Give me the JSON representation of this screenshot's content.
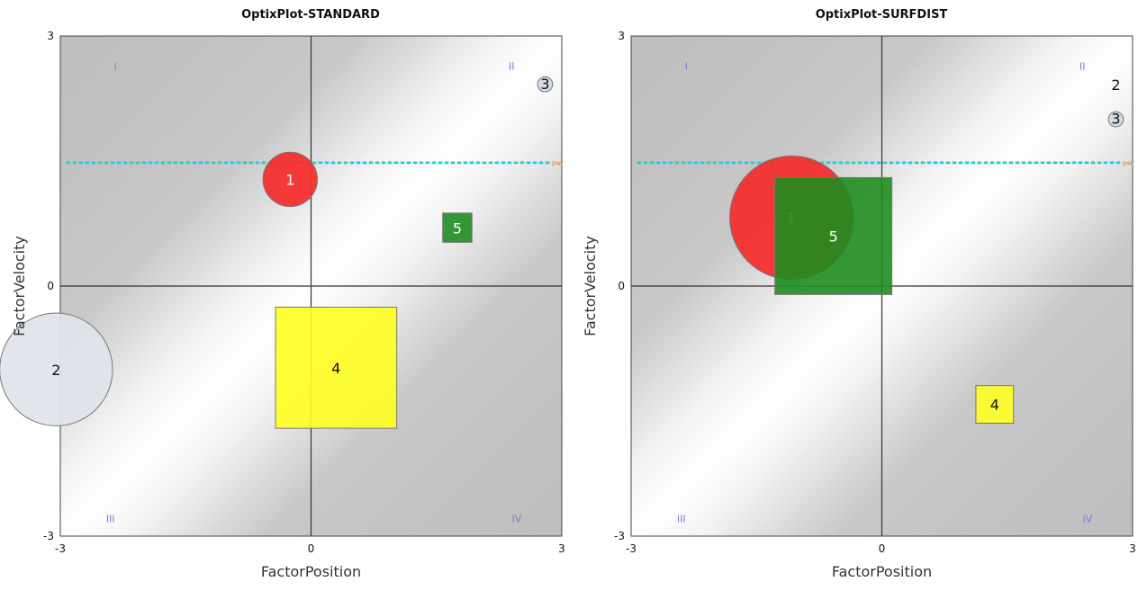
{
  "chart_data": [
    {
      "type": "scatter",
      "title": "OptixPlot-STANDARD",
      "xlabel": "FactorPosition",
      "ylabel": "FactorVelocity",
      "xlim": [
        -3,
        3
      ],
      "ylim": [
        -3,
        3
      ],
      "x_ticks": [
        "-3",
        "0",
        "3"
      ],
      "y_ticks": [
        "-3",
        "0",
        "3"
      ],
      "quadrants": [
        "I",
        "II",
        "III",
        "IV"
      ],
      "reference_line": {
        "y": 1.48,
        "label": "pwr"
      },
      "markers": [
        {
          "label": "1",
          "shape": "circle",
          "x": -0.25,
          "y": 1.28,
          "size": 0.65,
          "color": "#f42a2a"
        },
        {
          "label": "2",
          "shape": "circle",
          "x": -3.05,
          "y": -1.0,
          "size": 1.35,
          "color": "#dfe4ea"
        },
        {
          "label": "3",
          "shape": "circle",
          "x": 2.8,
          "y": 2.42,
          "size": 0.18,
          "color": "#cfd8e6"
        },
        {
          "label": "4",
          "shape": "square",
          "x": 0.3,
          "y": -0.98,
          "size": 1.45,
          "color": "#ffff22"
        },
        {
          "label": "5",
          "shape": "square",
          "x": 1.75,
          "y": 0.7,
          "size": 0.35,
          "color": "#1f8c1f"
        }
      ]
    },
    {
      "type": "scatter",
      "title": "OptixPlot-SURFDIST",
      "xlabel": "FactorPosition",
      "ylabel": "FactorVelocity",
      "xlim": [
        -3,
        3
      ],
      "ylim": [
        -3,
        3
      ],
      "x_ticks": [
        "-3",
        "0",
        "3"
      ],
      "y_ticks": [
        "-3",
        "0",
        "3"
      ],
      "quadrants": [
        "I",
        "II",
        "III",
        "IV"
      ],
      "reference_line": {
        "y": 1.48,
        "label": "pwr"
      },
      "markers": [
        {
          "label": "1",
          "shape": "circle",
          "x": -1.08,
          "y": 0.82,
          "size": 1.48,
          "color": "#f42a2a"
        },
        {
          "label": "2",
          "shape": "text",
          "x": 2.8,
          "y": 2.42,
          "size": 0.2,
          "color": "#111111"
        },
        {
          "label": "3",
          "shape": "circle",
          "x": 2.8,
          "y": 2.0,
          "size": 0.18,
          "color": "#cfd8e6"
        },
        {
          "label": "4",
          "shape": "square",
          "x": 1.35,
          "y": -1.42,
          "size": 0.45,
          "color": "#ffff22"
        },
        {
          "label": "5",
          "shape": "square",
          "x": -0.58,
          "y": 0.6,
          "size": 1.4,
          "color": "#1f8c1f"
        }
      ]
    }
  ]
}
